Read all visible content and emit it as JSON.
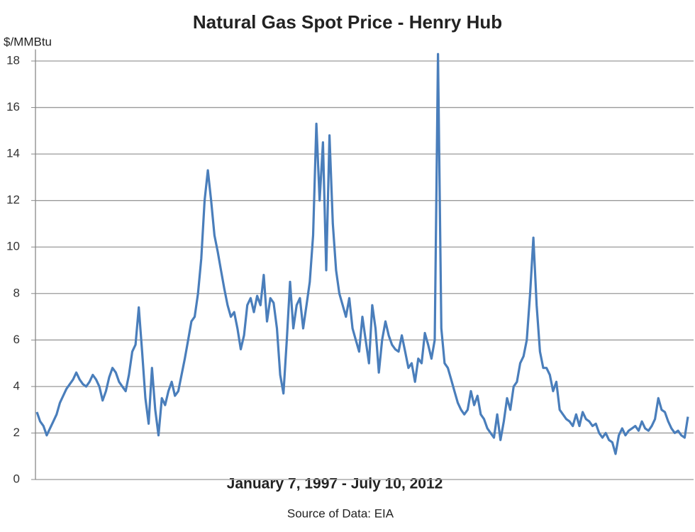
{
  "chart_data": {
    "type": "line",
    "title": "Natural Gas Spot Price - Henry Hub",
    "y_label": "$/MMBtu",
    "x_label": "January 7, 1997 - July 10, 2012",
    "source": "Source of Data: EIA",
    "color": "#4a7ebb",
    "grid": true,
    "ylim": [
      0,
      18.5
    ],
    "yticks": [
      0,
      2,
      4,
      6,
      8,
      10,
      12,
      14,
      16,
      18
    ],
    "values": [
      2.9,
      2.5,
      2.3,
      1.9,
      2.2,
      2.5,
      2.8,
      3.3,
      3.6,
      3.9,
      4.1,
      4.3,
      4.6,
      4.3,
      4.1,
      4.0,
      4.2,
      4.5,
      4.3,
      4.0,
      3.4,
      3.8,
      4.4,
      4.8,
      4.6,
      4.2,
      4.0,
      3.8,
      4.5,
      5.5,
      5.8,
      7.4,
      5.5,
      3.5,
      2.4,
      4.8,
      3.0,
      1.9,
      3.5,
      3.2,
      3.8,
      4.2,
      3.6,
      3.8,
      4.5,
      5.2,
      6.0,
      6.8,
      7.0,
      8.0,
      9.5,
      12.0,
      13.3,
      12.0,
      10.5,
      9.8,
      9.0,
      8.2,
      7.5,
      7.0,
      7.2,
      6.5,
      5.6,
      6.2,
      7.5,
      7.8,
      7.2,
      7.9,
      7.5,
      8.8,
      6.8,
      7.8,
      7.6,
      6.5,
      4.5,
      3.7,
      6.0,
      8.5,
      6.5,
      7.5,
      7.8,
      6.5,
      7.5,
      8.5,
      10.5,
      15.3,
      12.0,
      14.5,
      9.0,
      14.8,
      11.0,
      9.0,
      8.0,
      7.5,
      7.0,
      7.8,
      6.5,
      6.0,
      5.5,
      7.0,
      6.0,
      5.0,
      7.5,
      6.5,
      4.6,
      6.0,
      6.8,
      6.2,
      5.8,
      5.6,
      5.5,
      6.2,
      5.5,
      4.8,
      5.0,
      4.2,
      5.2,
      5.0,
      6.3,
      5.8,
      5.2,
      6.0,
      18.3,
      6.5,
      5.0,
      4.8,
      4.3,
      3.8,
      3.3,
      3.0,
      2.8,
      3.0,
      3.8,
      3.2,
      3.6,
      2.8,
      2.6,
      2.2,
      2.0,
      1.8,
      2.8,
      1.7,
      2.5,
      3.5,
      3.0,
      4.0,
      4.2,
      5.0,
      5.3,
      6.0,
      8.0,
      10.4,
      7.5,
      5.5,
      4.8,
      4.8,
      4.5,
      3.8,
      4.2,
      3.0,
      2.8,
      2.6,
      2.5,
      2.3,
      2.8,
      2.3,
      2.9,
      2.6,
      2.5,
      2.3,
      2.4,
      2.0,
      1.8,
      2.0,
      1.7,
      1.6,
      1.1,
      1.9,
      2.2,
      1.9,
      2.1,
      2.2,
      2.3,
      2.1,
      2.5,
      2.2,
      2.1,
      2.3,
      2.6,
      3.5,
      3.0,
      2.9,
      2.5,
      2.2,
      2.0,
      2.1,
      1.9,
      1.8,
      2.7
    ]
  }
}
